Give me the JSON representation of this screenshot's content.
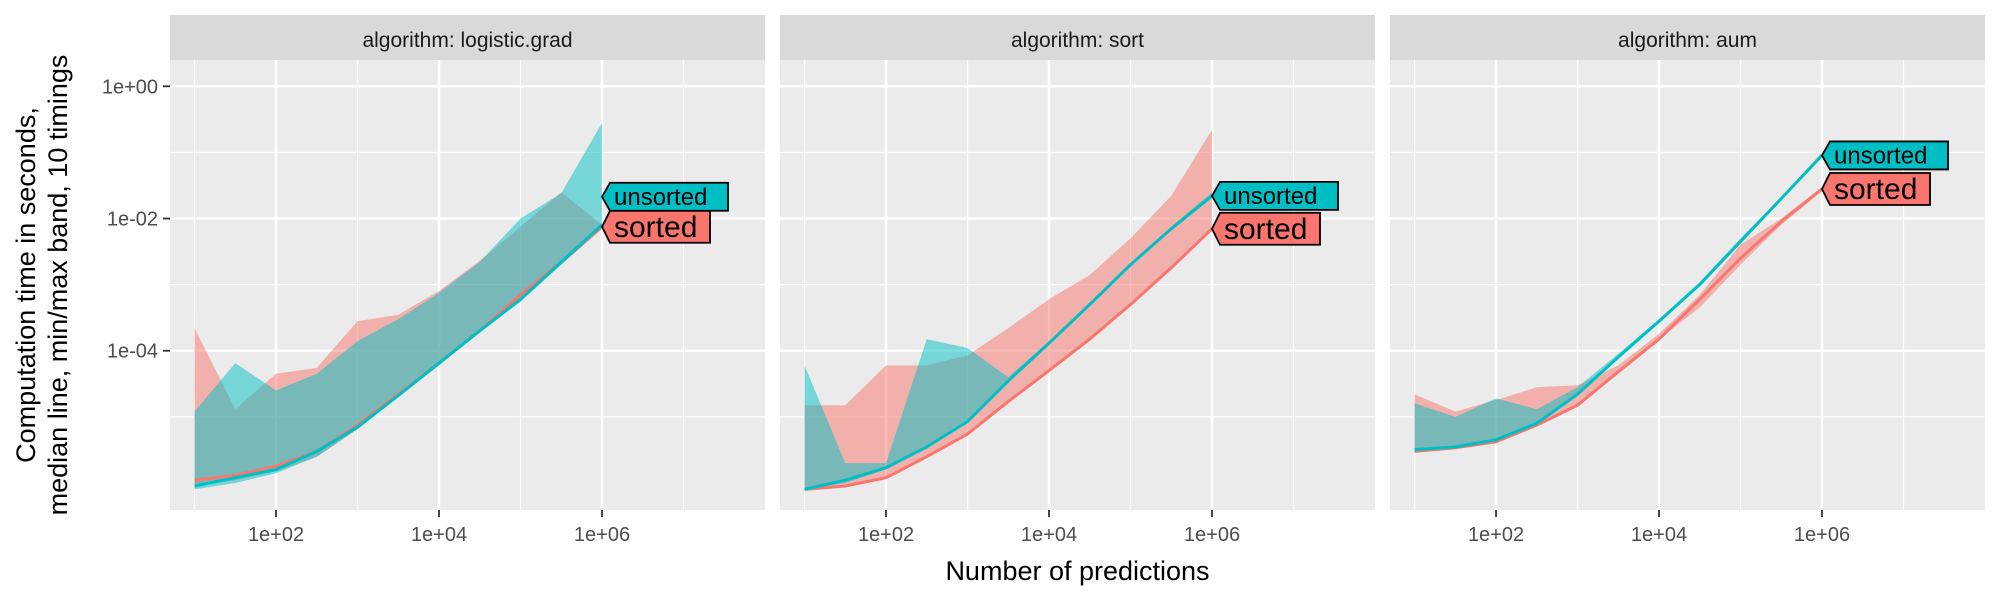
{
  "chart_data": {
    "type": "line",
    "xlabel": "Number of predictions",
    "ylabel_lines": [
      "Computation time in seconds,",
      "median line, min/max band, 10 timings"
    ],
    "x_scale": "log10",
    "y_scale": "log10",
    "xlim": [
      5,
      100000000
    ],
    "ylim": [
      3.9e-07,
      2.5
    ],
    "x_ticks": [
      100,
      10000,
      1000000
    ],
    "x_tick_labels": [
      "1e+02",
      "1e+04",
      "1e+06"
    ],
    "y_ticks": [
      0.0001,
      0.01,
      1
    ],
    "y_tick_labels": [
      "1e-04",
      "1e-02",
      "1e+00"
    ],
    "grid": true,
    "colors": {
      "sorted": "#F8766D",
      "unsorted": "#00BFC4",
      "panel_bg": "#EBEBEB",
      "strip_bg": "#D9D9D9",
      "grid": "#FFFFFF"
    },
    "x": [
      10,
      31.6,
      100,
      316,
      1000,
      3160,
      10000,
      31600,
      100000,
      316000,
      1000000
    ],
    "panels": [
      {
        "strip": "algorithm: logistic.grad",
        "series": [
          {
            "name": "sorted",
            "median": [
              1.1e-06,
              1.3e-06,
              1.8e-06,
              3e-06,
              7.5e-06,
              2.2e-05,
              6.5e-05,
              0.0002,
              0.0007,
              0.0022,
              0.0075
            ],
            "min": [
              9e-07,
              1.1e-06,
              1.5e-06,
              2.5e-06,
              6.5e-06,
              2e-05,
              6e-05,
              0.00019,
              0.00065,
              0.002,
              0.007
            ],
            "max": [
              0.00022,
              1.3e-05,
              4.5e-05,
              5.5e-05,
              0.00028,
              0.00035,
              0.0008,
              0.0023,
              0.0075,
              0.025,
              0.008
            ]
          },
          {
            "name": "unsorted",
            "median": [
              9e-07,
              1.2e-06,
              1.6e-06,
              3e-06,
              7e-06,
              2.1e-05,
              6.5e-05,
              0.0002,
              0.0006,
              0.0022,
              0.008
            ],
            "min": [
              8e-07,
              1e-06,
              1.4e-06,
              2.5e-06,
              6.5e-06,
              2e-05,
              6e-05,
              0.00019,
              0.00055,
              0.002,
              0.007
            ],
            "max": [
              1.2e-05,
              6.5e-05,
              2.5e-05,
              4.5e-05,
              0.00014,
              0.0003,
              0.00075,
              0.0022,
              0.01,
              0.024,
              0.28
            ]
          }
        ]
      },
      {
        "strip": "algorithm: sort",
        "series": [
          {
            "name": "sorted",
            "median": [
              8e-07,
              9e-07,
              1.2e-06,
              2.5e-06,
              5.5e-06,
              1.7e-05,
              5e-05,
              0.00015,
              0.0005,
              0.0018,
              0.007
            ],
            "min": [
              8e-07,
              9e-07,
              1.2e-06,
              2.5e-06,
              5.5e-06,
              1.7e-05,
              5e-05,
              0.00015,
              0.0005,
              0.0018,
              0.0065
            ],
            "max": [
              1.5e-05,
              1.5e-05,
              6e-05,
              6e-05,
              8.5e-05,
              0.00022,
              0.0006,
              0.0014,
              0.005,
              0.022,
              0.22
            ]
          },
          {
            "name": "unsorted",
            "median": [
              8e-07,
              1.1e-06,
              1.7e-06,
              3.5e-06,
              8.5e-06,
              3.5e-05,
              0.00013,
              0.0005,
              0.002,
              0.007,
              0.022
            ],
            "min": [
              8e-07,
              1e-06,
              1.6e-06,
              3.5e-06,
              8e-06,
              3.5e-05,
              0.00013,
              0.0005,
              0.002,
              0.007,
              0.021
            ],
            "max": [
              6e-05,
              2e-06,
              2e-06,
              0.00015,
              0.00011,
              4e-05,
              0.00014,
              0.0005,
              0.002,
              0.0075,
              0.025
            ]
          }
        ]
      },
      {
        "strip": "algorithm: aum",
        "series": [
          {
            "name": "sorted",
            "median": [
              3e-06,
              3.4e-06,
              4.2e-06,
              7.5e-06,
              1.5e-05,
              4.8e-05,
              0.00015,
              0.0006,
              0.0025,
              0.009,
              0.028
            ],
            "min": [
              3e-06,
              3.3e-06,
              4.2e-06,
              7.5e-06,
              1.5e-05,
              4.5e-05,
              0.00015,
              0.00045,
              0.002,
              0.008,
              0.026
            ],
            "max": [
              2.2e-05,
              1.2e-05,
              1.8e-05,
              2.8e-05,
              3e-05,
              6e-05,
              0.00018,
              0.0007,
              0.004,
              0.01,
              0.03
            ]
          },
          {
            "name": "unsorted",
            "median": [
              3.2e-06,
              3.5e-06,
              4.5e-06,
              8e-06,
              2.2e-05,
              8e-05,
              0.00028,
              0.001,
              0.0045,
              0.02,
              0.09
            ],
            "min": [
              3e-06,
              3.4e-06,
              4.4e-06,
              8e-06,
              2.1e-05,
              7.5e-05,
              0.00026,
              0.00095,
              0.0042,
              0.019,
              0.085
            ],
            "max": [
              1.6e-05,
              1e-05,
              1.9e-05,
              1.3e-05,
              2.8e-05,
              9e-05,
              0.0003,
              0.0011,
              0.005,
              0.021,
              0.1
            ]
          }
        ]
      }
    ]
  }
}
